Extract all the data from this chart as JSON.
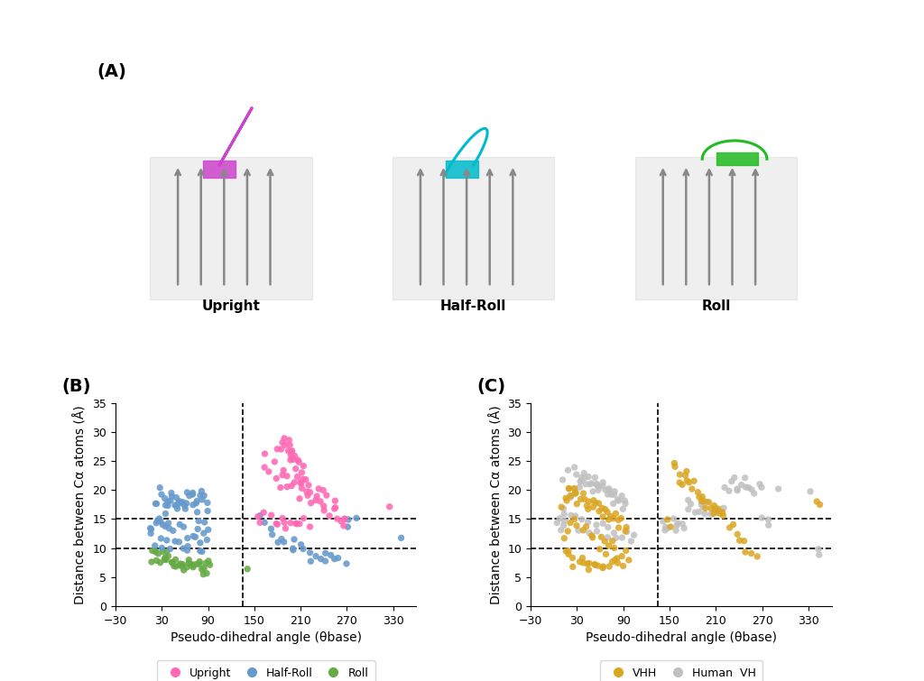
{
  "panel_A_label": "(A)",
  "panel_B_label": "(B)",
  "panel_C_label": "(C)",
  "upright_label": "Upright",
  "halfroll_label": "Half-Roll",
  "roll_label": "Roll",
  "xlabel": "Pseudo-dihedral angle (θbase)",
  "ylabel": "Distance between Cα atoms (Å)",
  "xlim": [
    -30,
    360
  ],
  "ylim": [
    0,
    35
  ],
  "xticks": [
    -30,
    30,
    90,
    150,
    210,
    270,
    330
  ],
  "yticks": [
    0,
    5,
    10,
    15,
    20,
    25,
    30,
    35
  ],
  "hline_B1": 10,
  "hline_B2": 15,
  "vline_B": 135,
  "hline_C1": 10,
  "hline_C2": 15,
  "vline_C": 135,
  "upright_color": "#FF69B4",
  "halfroll_color": "#6699CC",
  "roll_color": "#66AA44",
  "vhh_color": "#DAA520",
  "humanvh_color": "#C0C0C0",
  "upright_x": [
    175,
    180,
    183,
    185,
    187,
    190,
    192,
    193,
    195,
    197,
    198,
    200,
    200,
    202,
    203,
    205,
    205,
    207,
    208,
    210,
    210,
    212,
    213,
    215,
    218,
    220,
    225,
    230,
    235,
    240,
    245,
    250,
    255,
    260,
    265,
    270,
    163,
    168,
    172,
    178,
    182,
    186,
    188,
    193,
    196,
    200,
    203,
    207,
    210,
    213,
    217,
    220,
    225,
    228,
    233,
    238,
    242,
    248,
    253,
    260,
    267,
    155,
    160,
    165,
    170,
    175,
    180,
    184,
    188,
    192,
    196,
    200,
    205,
    210,
    215,
    220,
    325
  ],
  "upright_y": [
    25,
    27,
    28,
    29,
    28,
    27,
    28,
    29,
    27,
    26,
    25,
    27,
    25,
    26,
    25,
    24,
    26,
    25,
    23,
    25,
    24,
    23,
    22,
    21,
    22,
    21,
    20,
    19,
    20,
    19,
    19,
    18,
    17,
    16,
    15,
    15,
    25,
    24,
    23,
    22,
    21,
    22,
    23,
    22,
    21,
    20,
    22,
    21,
    20,
    19,
    20,
    19,
    18,
    19,
    18,
    17,
    17,
    16,
    16,
    15,
    14,
    15,
    15,
    16,
    15,
    15,
    14,
    15,
    14,
    14,
    15,
    14,
    14,
    15,
    14,
    14,
    17
  ],
  "halfroll_x": [
    15,
    18,
    20,
    22,
    25,
    28,
    30,
    32,
    35,
    37,
    40,
    42,
    45,
    47,
    50,
    52,
    55,
    57,
    60,
    62,
    65,
    68,
    70,
    72,
    75,
    78,
    80,
    82,
    85,
    88,
    90,
    25,
    30,
    35,
    40,
    45,
    50,
    55,
    60,
    65,
    70,
    75,
    80,
    85,
    90,
    18,
    22,
    27,
    32,
    37,
    42,
    47,
    52,
    57,
    62,
    67,
    72,
    77,
    82,
    87,
    22,
    27,
    32,
    37,
    42,
    47,
    52,
    57,
    62,
    67,
    72,
    77,
    82,
    160,
    165,
    170,
    175,
    180,
    185,
    190,
    195,
    200,
    205,
    210,
    215,
    220,
    225,
    230,
    235,
    240,
    245,
    250,
    255,
    260,
    265,
    270,
    275,
    280,
    335
  ],
  "halfroll_y": [
    12,
    14,
    15,
    17,
    18,
    19,
    20,
    19,
    18,
    19,
    20,
    19,
    18,
    17,
    18,
    17,
    18,
    17,
    18,
    19,
    19,
    20,
    19,
    18,
    18,
    19,
    20,
    19,
    18,
    17,
    17,
    14,
    15,
    16,
    17,
    18,
    19,
    18,
    17,
    18,
    17,
    16,
    15,
    14,
    13,
    13,
    14,
    15,
    14,
    13,
    14,
    13,
    14,
    13,
    12,
    13,
    12,
    11,
    12,
    11,
    10,
    11,
    10,
    11,
    10,
    11,
    10,
    11,
    10,
    10,
    11,
    10,
    10,
    15,
    14,
    13,
    12,
    11,
    12,
    11,
    10,
    11,
    10,
    11,
    10,
    9,
    8,
    9,
    8,
    9,
    8,
    9,
    8,
    9,
    8,
    14,
    15,
    15,
    11
  ],
  "roll_x": [
    15,
    18,
    22,
    25,
    28,
    32,
    35,
    38,
    42,
    45,
    48,
    52,
    55,
    58,
    62,
    65,
    68,
    72,
    75,
    78,
    82,
    85,
    88,
    92,
    20,
    25,
    30,
    35,
    40,
    45,
    50,
    55,
    60,
    65,
    70,
    75,
    80,
    85,
    90,
    140
  ],
  "roll_y": [
    8,
    9,
    9,
    8,
    8,
    9,
    8,
    9,
    8,
    7,
    8,
    7,
    7,
    7,
    7,
    8,
    7,
    7,
    7,
    8,
    7,
    7,
    7,
    8,
    9,
    9,
    8,
    8,
    8,
    7,
    7,
    7,
    6,
    7,
    7,
    7,
    6,
    6,
    6,
    7
  ],
  "vhh_x": [
    10,
    13,
    15,
    17,
    20,
    22,
    25,
    27,
    30,
    32,
    35,
    37,
    40,
    42,
    45,
    47,
    50,
    52,
    55,
    57,
    60,
    62,
    65,
    67,
    70,
    72,
    75,
    77,
    80,
    82,
    85,
    87,
    90,
    92,
    15,
    18,
    22,
    25,
    28,
    32,
    35,
    38,
    42,
    45,
    48,
    52,
    55,
    58,
    62,
    65,
    68,
    72,
    75,
    78,
    82,
    85,
    88,
    92,
    12,
    17,
    22,
    27,
    32,
    37,
    42,
    47,
    52,
    57,
    62,
    67,
    72,
    77,
    82,
    87,
    92,
    145,
    150,
    155,
    160,
    163,
    165,
    167,
    170,
    172,
    175,
    177,
    180,
    182,
    185,
    187,
    190,
    192,
    195,
    197,
    200,
    202,
    205,
    207,
    210,
    213,
    215,
    218,
    220,
    225,
    230,
    235,
    238,
    245,
    250,
    255,
    262,
    340,
    345
  ],
  "vhh_y": [
    17,
    18,
    19,
    20,
    20,
    19,
    20,
    19,
    18,
    19,
    18,
    19,
    18,
    17,
    18,
    17,
    18,
    17,
    18,
    17,
    16,
    17,
    16,
    17,
    16,
    15,
    16,
    15,
    16,
    15,
    14,
    15,
    14,
    13,
    9,
    9,
    9,
    8,
    8,
    8,
    8,
    8,
    7,
    7,
    7,
    7,
    7,
    7,
    7,
    7,
    8,
    7,
    8,
    8,
    8,
    7,
    7,
    8,
    12,
    13,
    14,
    15,
    14,
    13,
    14,
    13,
    12,
    11,
    12,
    11,
    10,
    11,
    10,
    9,
    10,
    15,
    14,
    25,
    24,
    23,
    22,
    21,
    22,
    23,
    22,
    21,
    20,
    21,
    20,
    19,
    18,
    19,
    18,
    17,
    18,
    17,
    17,
    16,
    17,
    16,
    17,
    15,
    16,
    13,
    14,
    12,
    11,
    11,
    10,
    9,
    8,
    18,
    17
  ],
  "humanvh_x": [
    5,
    8,
    12,
    15,
    18,
    22,
    25,
    28,
    32,
    35,
    38,
    42,
    45,
    48,
    52,
    55,
    58,
    62,
    65,
    68,
    72,
    75,
    78,
    82,
    85,
    88,
    92,
    95,
    8,
    12,
    17,
    22,
    27,
    32,
    37,
    42,
    47,
    52,
    57,
    62,
    67,
    72,
    77,
    82,
    87,
    92,
    97,
    102,
    12,
    17,
    22,
    27,
    32,
    37,
    42,
    47,
    52,
    57,
    62,
    67,
    72,
    77,
    82,
    87,
    140,
    143,
    147,
    150,
    153,
    157,
    160,
    163,
    167,
    170,
    173,
    177,
    180,
    183,
    187,
    190,
    193,
    197,
    200,
    203,
    207,
    210,
    213,
    217,
    220,
    223,
    227,
    230,
    233,
    237,
    240,
    243,
    247,
    250,
    253,
    257,
    260,
    263,
    267,
    270,
    275,
    280,
    290,
    335,
    340,
    345
  ],
  "humanvh_y": [
    14,
    15,
    16,
    17,
    18,
    19,
    20,
    19,
    20,
    21,
    22,
    21,
    22,
    21,
    20,
    21,
    20,
    21,
    20,
    19,
    20,
    19,
    18,
    19,
    18,
    17,
    18,
    17,
    13,
    14,
    15,
    16,
    15,
    14,
    15,
    14,
    13,
    14,
    13,
    14,
    13,
    12,
    13,
    12,
    11,
    12,
    11,
    12,
    22,
    23,
    24,
    23,
    22,
    23,
    22,
    21,
    22,
    21,
    20,
    21,
    20,
    19,
    20,
    19,
    15,
    14,
    13,
    14,
    15,
    14,
    13,
    14,
    13,
    14,
    17,
    18,
    17,
    16,
    17,
    18,
    17,
    16,
    17,
    16,
    17,
    16,
    17,
    16,
    17,
    21,
    20,
    21,
    22,
    21,
    20,
    21,
    22,
    21,
    20,
    19,
    20,
    21,
    20,
    15,
    15,
    14,
    20,
    19,
    10,
    9
  ]
}
